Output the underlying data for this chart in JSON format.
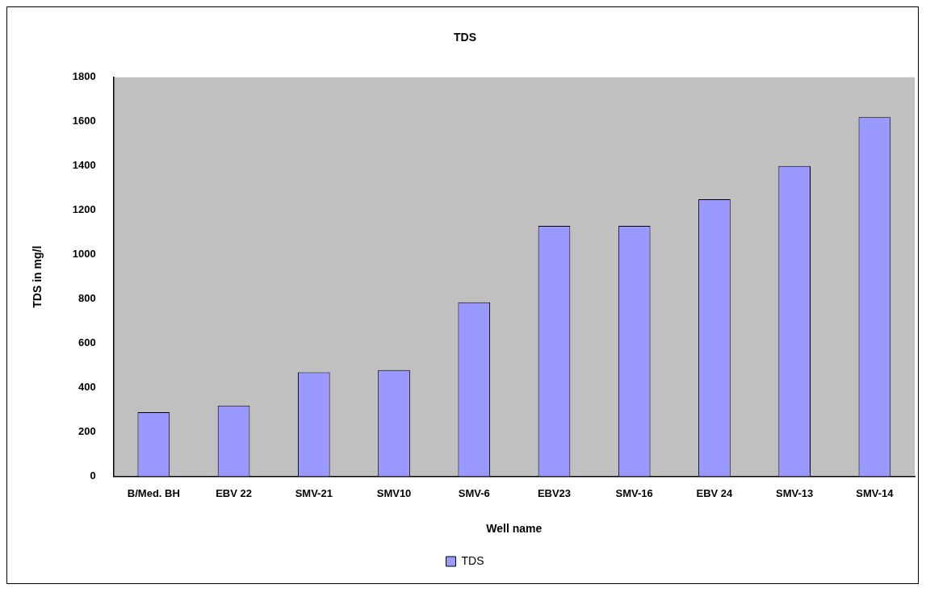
{
  "chart_data": {
    "type": "bar",
    "title": "TDS",
    "xlabel": "Well name",
    "ylabel": "TDS in mg/l",
    "categories": [
      "B/Med. BH",
      "EBV 22",
      "SMV-21",
      "SMV10",
      "SMV-6",
      "EBV23",
      "SMV-16",
      "EBV 24",
      "SMV-13",
      "SMV-14"
    ],
    "series": [
      {
        "name": "TDS",
        "color": "#9999ff",
        "values": [
          290,
          320,
          470,
          480,
          785,
          1130,
          1130,
          1250,
          1400,
          1620
        ]
      }
    ],
    "ylim": [
      0,
      1800
    ],
    "yticks": [
      0,
      200,
      400,
      600,
      800,
      1000,
      1200,
      1400,
      1600,
      1800
    ],
    "grid": false,
    "legend": "bottom"
  }
}
